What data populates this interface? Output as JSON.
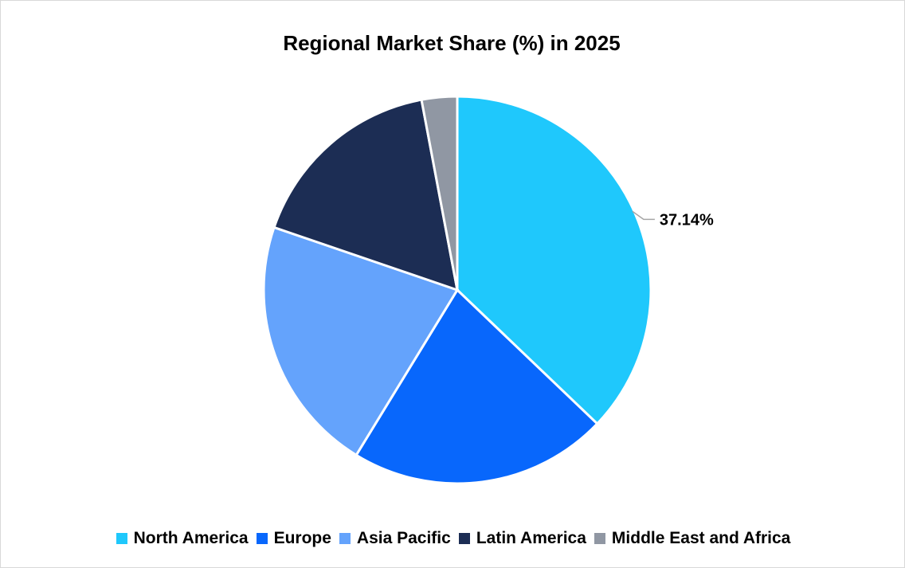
{
  "chart_data": {
    "type": "pie",
    "title": "Regional Market Share (%) in 2025",
    "categories": [
      "North America",
      "Europe",
      "Asia Pacific",
      "Latin America",
      "Middle East and Africa"
    ],
    "values": [
      37.14,
      21.6,
      21.5,
      16.8,
      2.96
    ],
    "colors": [
      "#1fc8fc",
      "#0867fc",
      "#64a3fc",
      "#1c2d54",
      "#9097a3"
    ],
    "data_labels": [
      {
        "category": "North America",
        "text": "37.14%"
      }
    ],
    "legend_position": "bottom",
    "start_angle_deg": 0,
    "direction": "clockwise"
  },
  "legend": [
    {
      "label": "North America",
      "color": "#1fc8fc"
    },
    {
      "label": "Europe",
      "color": "#0867fc"
    },
    {
      "label": "Asia Pacific",
      "color": "#64a3fc"
    },
    {
      "label": "Latin America",
      "color": "#1c2d54"
    },
    {
      "label": "Middle East and Africa",
      "color": "#9097a3"
    }
  ]
}
